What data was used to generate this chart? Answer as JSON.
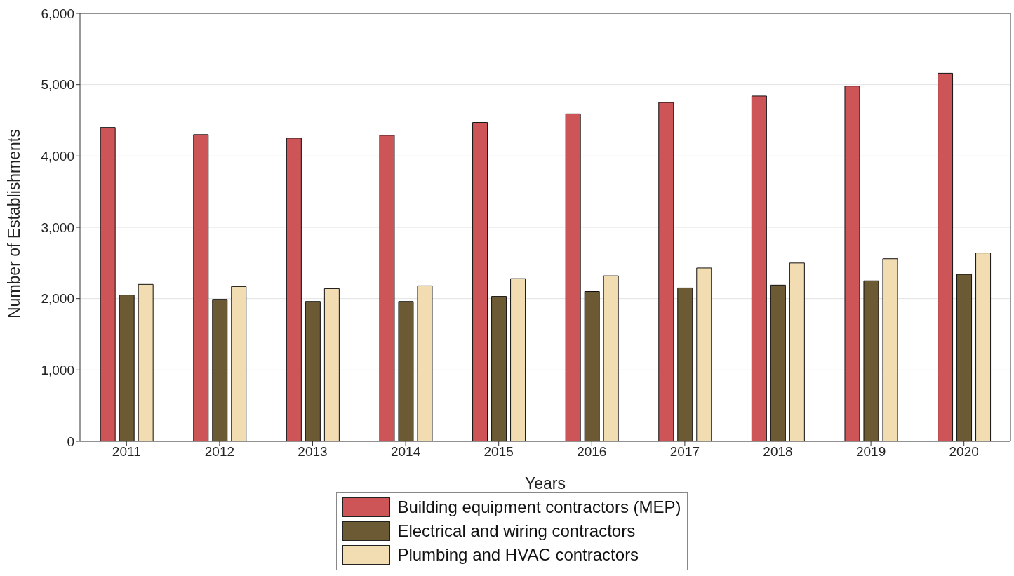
{
  "chart_data": {
    "type": "bar",
    "xlabel": "Years",
    "ylabel": "Number of Establishments",
    "categories": [
      "2011",
      "2012",
      "2013",
      "2014",
      "2015",
      "2016",
      "2017",
      "2018",
      "2019",
      "2020"
    ],
    "series": [
      {
        "name": "Building equipment contractors (MEP)",
        "color": "#cd5558",
        "values": [
          4400,
          4300,
          4250,
          4290,
          4470,
          4590,
          4750,
          4840,
          4980,
          5160
        ]
      },
      {
        "name": "Electrical and wiring contractors",
        "color": "#6b5a33",
        "values": [
          2050,
          1990,
          1960,
          1960,
          2030,
          2100,
          2150,
          2190,
          2250,
          2340
        ]
      },
      {
        "name": "Plumbing and HVAC contractors",
        "color": "#f2dcb2",
        "values": [
          2200,
          2170,
          2140,
          2180,
          2280,
          2320,
          2430,
          2500,
          2560,
          2640
        ]
      }
    ],
    "ylim": [
      0,
      6000
    ],
    "yticks": [
      0,
      {
        "value": 1000,
        "label": "1,000"
      },
      {
        "value": 2000,
        "label": "2,000"
      },
      {
        "value": 3000,
        "label": "3,000"
      },
      {
        "value": 4000,
        "label": "4,000"
      },
      {
        "value": 5000,
        "label": "5,000"
      },
      {
        "value": 6000,
        "label": "6,000"
      }
    ],
    "grid": "y",
    "legend": "bottom"
  }
}
